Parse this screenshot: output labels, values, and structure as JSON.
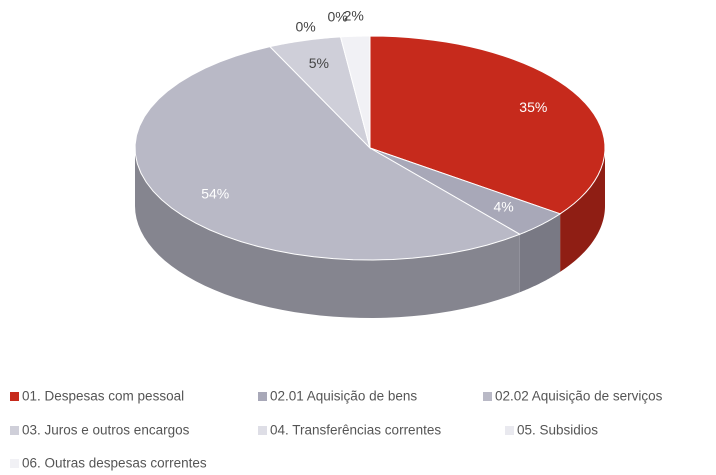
{
  "chart_data": {
    "type": "pie3d",
    "categories": [
      "01. Despesas com pessoal",
      "02.01 Aquisição de bens",
      "02.02 Aquisição de serviços",
      "03. Juros e outros encargos",
      "04. Transferências correntes",
      "05. Subsidios",
      "06. Outras despesas correntes"
    ],
    "values": [
      35,
      4,
      54,
      5,
      0,
      0,
      2
    ],
    "value_labels": [
      "35%",
      "4%",
      "54%",
      "5%",
      "0%",
      "0%",
      "2%"
    ],
    "colors": [
      "#c62a1c",
      "#a8a8b8",
      "#b9b9c6",
      "#cfcfd9",
      "#dedee6",
      "#e9e9ef",
      "#f1f1f5"
    ]
  }
}
